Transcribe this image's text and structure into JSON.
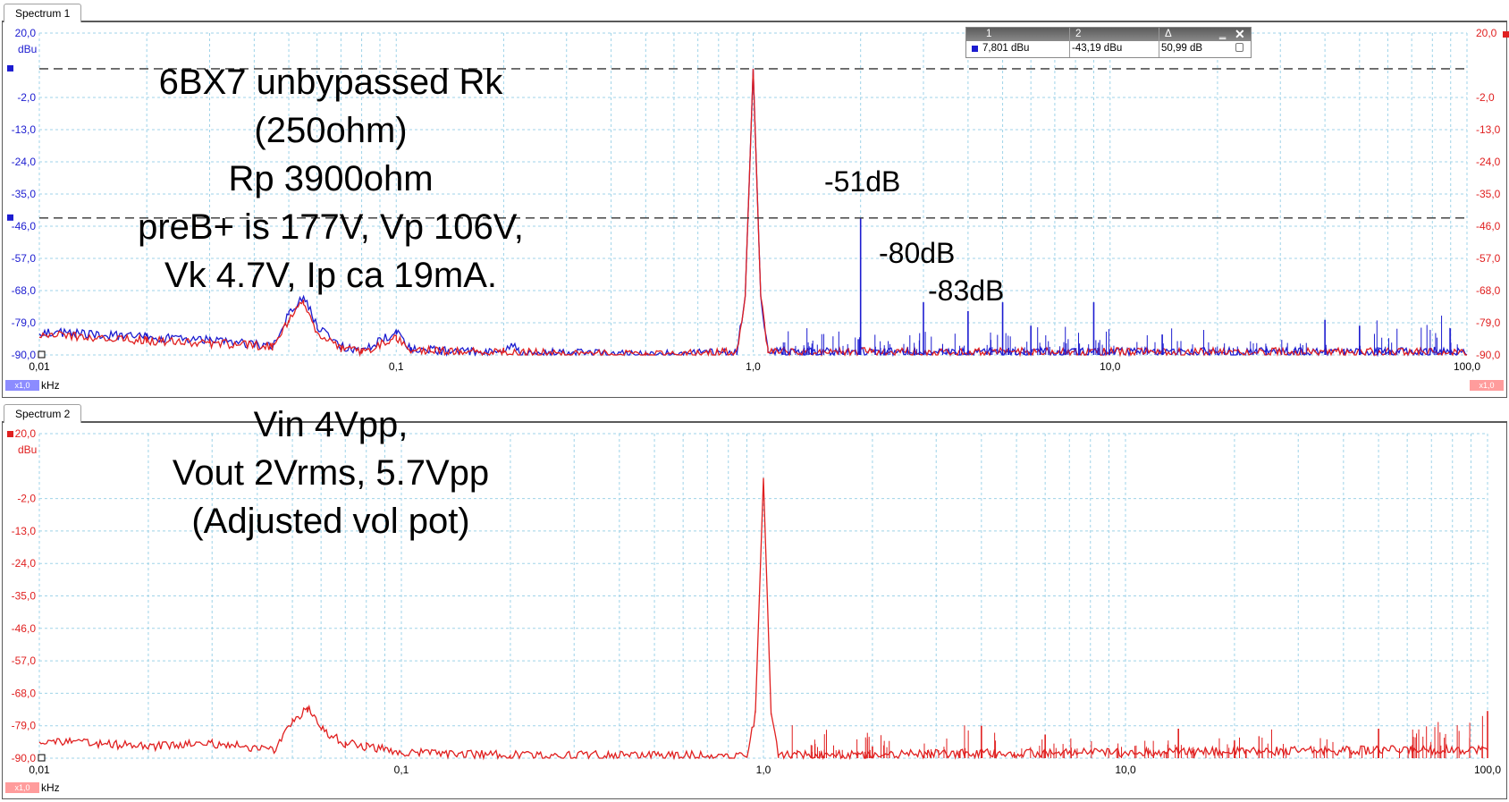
{
  "panels": [
    {
      "tab": "Spectrum 1"
    },
    {
      "tab": "Spectrum 2"
    }
  ],
  "y_unit": "dBu",
  "x_unit": "kHz",
  "x1_badge": "x1,0",
  "colors": {
    "ch1": "#1c1cd0",
    "ch2": "#e02020",
    "grid": "#9fd3e8"
  },
  "cursor_readout": {
    "headers": [
      "1",
      "2",
      "Δ"
    ],
    "values": [
      "7,801 dBu",
      "-43,19 dBu",
      "50,99 dB"
    ],
    "buttons": [
      "minimize-icon",
      "close-icon",
      "lock-icon"
    ]
  },
  "annotations": {
    "spectrum1": [
      "6BX7 unbypassed Rk",
      "(250ohm)",
      "Rp 3900ohm",
      "preB+ is 177V, Vp 106V,",
      "Vk 4.7V, Ip ca 19mA."
    ],
    "spectrum1_peaks": [
      "-51dB",
      "-80dB",
      "-83dB"
    ],
    "spectrum2": [
      "Vin 4Vpp,",
      "Vout 2Vrms, 5.7Vpp",
      "(Adjusted vol pot)"
    ]
  },
  "chart_data": [
    {
      "type": "line",
      "title": "Spectrum 1",
      "ylabel": "dBu",
      "xlabel": "kHz",
      "x_scale": "log",
      "xlim": [
        0.01,
        100
      ],
      "ylim": [
        -90,
        20
      ],
      "y_ticks": [
        "20,0",
        "-2,0",
        "-13,0",
        "-24,0",
        "-35,0",
        "-46,0",
        "-57,0",
        "-68,0",
        "-79,0",
        "-90,0"
      ],
      "x_ticks": [
        "0,01",
        "0,1",
        "1,0",
        "10,0",
        "100,0"
      ],
      "grid": true,
      "cursors_dBu": [
        7.8,
        -43.19
      ],
      "peaks": [
        {
          "x": 1.0,
          "y": 7.8
        },
        {
          "x": 2.0,
          "y": -43.2
        },
        {
          "x": 3.0,
          "y": -72
        },
        {
          "x": 4.0,
          "y": -75
        },
        {
          "x": 5.0,
          "y": -72
        },
        {
          "x": 6.0,
          "y": -80
        },
        {
          "x": 9.0,
          "y": -72
        },
        {
          "x": 14.0,
          "y": -83
        },
        {
          "x": 40.0,
          "y": -78
        },
        {
          "x": 50.0,
          "y": -80
        }
      ],
      "series": [
        {
          "color": "#1c1cd0",
          "points": [
            [
              0.01,
              -82
            ],
            [
              0.02,
              -84
            ],
            [
              0.03,
              -85
            ],
            [
              0.045,
              -87
            ],
            [
              0.05,
              -76
            ],
            [
              0.055,
              -70
            ],
            [
              0.06,
              -80
            ],
            [
              0.07,
              -87
            ],
            [
              0.08,
              -89
            ],
            [
              0.1,
              -82
            ],
            [
              0.11,
              -88
            ],
            [
              0.15,
              -89
            ],
            [
              0.2,
              -89
            ],
            [
              0.21,
              -86
            ],
            [
              0.22,
              -89
            ],
            [
              0.5,
              -90
            ],
            [
              0.9,
              -89
            ],
            [
              0.95,
              -70
            ],
            [
              1.0,
              7.8
            ],
            [
              1.05,
              -70
            ],
            [
              1.1,
              -89
            ],
            [
              100,
              -89
            ]
          ]
        },
        {
          "color": "#e02020",
          "points": [
            [
              0.01,
              -83
            ],
            [
              0.02,
              -85
            ],
            [
              0.03,
              -86
            ],
            [
              0.045,
              -87
            ],
            [
              0.05,
              -78
            ],
            [
              0.055,
              -72
            ],
            [
              0.06,
              -82
            ],
            [
              0.07,
              -88
            ],
            [
              0.08,
              -89
            ],
            [
              0.1,
              -84
            ],
            [
              0.11,
              -88
            ],
            [
              0.15,
              -89
            ],
            [
              0.2,
              -89
            ],
            [
              0.5,
              -90
            ],
            [
              0.9,
              -89
            ],
            [
              0.95,
              -70
            ],
            [
              1.0,
              7.8
            ],
            [
              1.05,
              -70
            ],
            [
              1.1,
              -89
            ],
            [
              100,
              -89
            ]
          ]
        }
      ]
    },
    {
      "type": "line",
      "title": "Spectrum 2",
      "ylabel": "dBu",
      "xlabel": "kHz",
      "x_scale": "log",
      "xlim": [
        0.01,
        100
      ],
      "ylim": [
        -90,
        20
      ],
      "y_ticks": [
        "20,0",
        "-2,0",
        "-13,0",
        "-24,0",
        "-35,0",
        "-46,0",
        "-57,0",
        "-68,0",
        "-79,0",
        "-90,0"
      ],
      "x_ticks": [
        "0,01",
        "0,1",
        "1,0",
        "10,0",
        "100,0"
      ],
      "grid": true,
      "peaks": [
        {
          "x": 1.0,
          "y": 5
        },
        {
          "x": 2.0,
          "y": -86
        },
        {
          "x": 4.0,
          "y": -79
        },
        {
          "x": 6.0,
          "y": -82
        },
        {
          "x": 14.0,
          "y": -80
        },
        {
          "x": 20.0,
          "y": -84
        },
        {
          "x": 50.0,
          "y": -80
        },
        {
          "x": 100.0,
          "y": -74
        }
      ],
      "series": [
        {
          "color": "#e02020",
          "points": [
            [
              0.01,
              -84
            ],
            [
              0.02,
              -86
            ],
            [
              0.03,
              -85
            ],
            [
              0.045,
              -87
            ],
            [
              0.05,
              -78
            ],
            [
              0.055,
              -73
            ],
            [
              0.06,
              -80
            ],
            [
              0.07,
              -85
            ],
            [
              0.08,
              -86
            ],
            [
              0.1,
              -88
            ],
            [
              0.2,
              -89
            ],
            [
              0.5,
              -89
            ],
            [
              0.9,
              -89
            ],
            [
              0.95,
              -75
            ],
            [
              1.0,
              5
            ],
            [
              1.05,
              -75
            ],
            [
              1.1,
              -89
            ],
            [
              100,
              -87
            ]
          ]
        }
      ]
    }
  ]
}
